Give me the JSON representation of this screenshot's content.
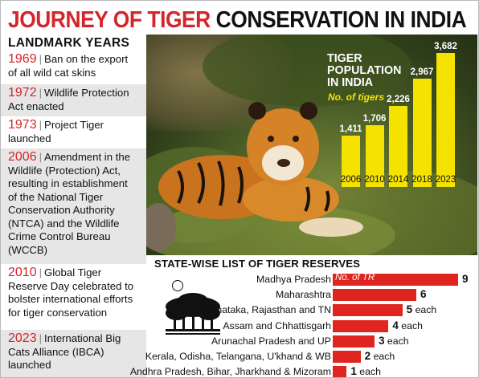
{
  "title": {
    "part1": "JOURNEY OF TIGER",
    "part2": "CONSERVATION IN INDIA"
  },
  "landmarks": {
    "heading": "LANDMARK YEARS",
    "events": [
      {
        "year": "1969",
        "text": "Ban on the export of all wild cat skins"
      },
      {
        "year": "1972",
        "text": "Wildlife Protection Act enacted"
      },
      {
        "year": "1973",
        "text": "Project Tiger launched"
      },
      {
        "year": "2006",
        "text": "Amendment in the Wildlife (Protection) Act, resulting in establishment of the National Tiger Conservation Authority (NTCA) and the Wildlife Crime Control Bureau (WCCB)"
      },
      {
        "year": "2010",
        "text": "Global Tiger Reserve Day celebrated to bolster international efforts for tiger conservation"
      },
      {
        "year": "2023",
        "text": "International Big Cats Alliance (IBCA) launched"
      }
    ]
  },
  "chart_data": [
    {
      "type": "bar",
      "title": "TIGER POPULATION IN INDIA",
      "subtitle": "No. of tigers",
      "categories": [
        "2006",
        "2010",
        "2014",
        "2018",
        "2023"
      ],
      "values": [
        1411,
        1706,
        2226,
        2967,
        3682
      ],
      "value_labels": [
        "1,411",
        "1,706",
        "2,226",
        "2,967",
        "3,682"
      ],
      "colors": {
        "bar": "#f5e200",
        "label": "#ffffff"
      }
    },
    {
      "type": "bar",
      "orientation": "horizontal",
      "title": "STATE-WISE LIST OF TIGER RESERVES",
      "series_label": "No. of TR",
      "categories": [
        "Madhya Pradesh",
        "Maharashtra",
        "Karnataka, Rajasthan and TN",
        "Assam and Chhattisgarh",
        "Arunachal Pradesh and UP",
        "Kerala, Odisha, Telangana, U'khand & WB",
        "Andhra Pradesh, Bihar, Jharkhand & Mizoram"
      ],
      "values": [
        9,
        6,
        5,
        4,
        3,
        2,
        1
      ],
      "suffixes": [
        "",
        "",
        "each",
        "each",
        "each",
        "each",
        "each"
      ],
      "colors": {
        "bar": "#e0241f"
      }
    }
  ]
}
